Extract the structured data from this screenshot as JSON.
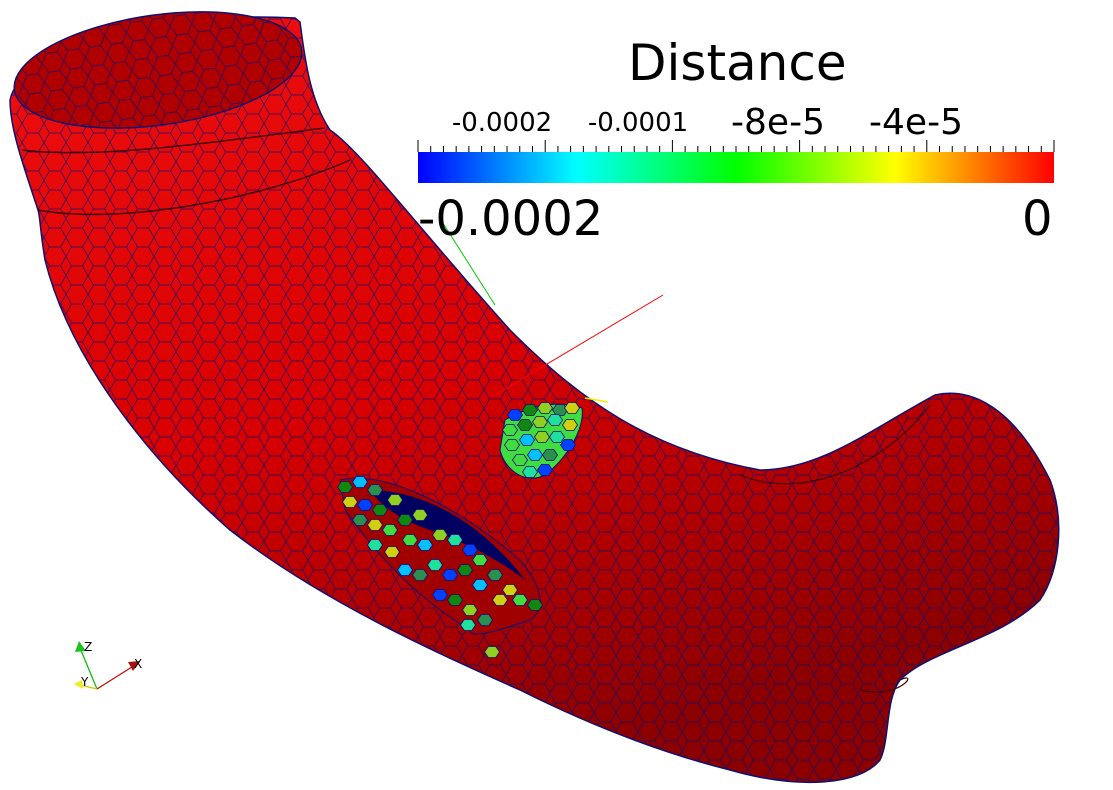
{
  "scalar_bar": {
    "title": "Distance",
    "ticks": [
      {
        "value": "-0.0002",
        "size": "small"
      },
      {
        "value": "-0.0001",
        "size": "small"
      },
      {
        "value": "-8e-5",
        "size": "large"
      },
      {
        "value": "-4e-5",
        "size": "large"
      }
    ],
    "range_min": "-0.0002",
    "range_max": "0",
    "colormap": [
      "#0000ff",
      "#00ffff",
      "#00ff00",
      "#ffff00",
      "#ff0000"
    ]
  },
  "orientation_axes": {
    "x_label": "X",
    "y_label": "Y",
    "z_label": "Z",
    "x_color": "#cc0000",
    "y_color": "#e6e600",
    "z_color": "#00bb00"
  },
  "mesh": {
    "surface_color": "#e00000",
    "edge_color": "#101070"
  }
}
